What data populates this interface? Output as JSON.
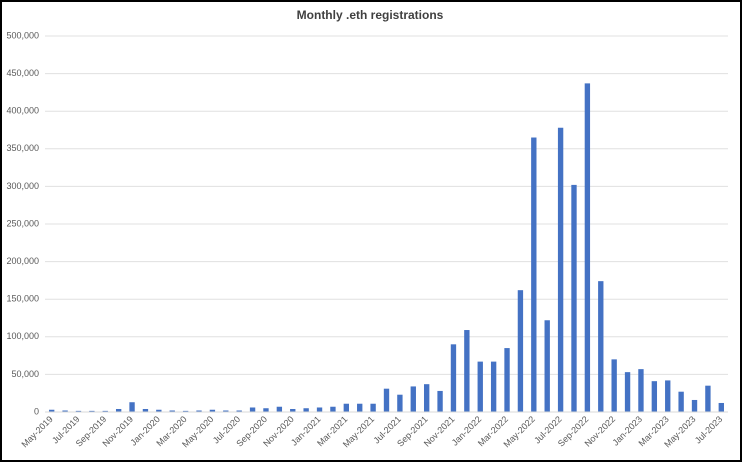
{
  "chart_data": {
    "type": "bar",
    "title": "Monthly .eth registrations",
    "categories": [
      "May-2019",
      null,
      "Jul-2019",
      null,
      "Sep-2019",
      null,
      "Nov-2019",
      null,
      "Jan-2020",
      null,
      "Mar-2020",
      null,
      "May-2020",
      null,
      "Jul-2020",
      null,
      "Sep-2020",
      null,
      "Nov-2020",
      null,
      "Jan-2021",
      null,
      "Mar-2021",
      null,
      "May-2021",
      null,
      "Jul-2021",
      null,
      "Sep-2021",
      null,
      "Nov-2021",
      null,
      "Jan-2022",
      null,
      "Mar-2022",
      null,
      "May-2022",
      null,
      "Jul-2022",
      null,
      "Sep-2022",
      null,
      "Nov-2022",
      null,
      "Jan-2023",
      null,
      "Mar-2023",
      null,
      "May-2023",
      null,
      "Jul-2023"
    ],
    "values": [
      3000,
      2000,
      1500,
      1500,
      1500,
      4000,
      13000,
      4000,
      3000,
      2000,
      1500,
      2000,
      3000,
      2000,
      2000,
      6000,
      5000,
      7000,
      4000,
      5000,
      6000,
      7000,
      11000,
      11000,
      11000,
      31000,
      23000,
      34000,
      37000,
      28000,
      90000,
      109000,
      67000,
      67000,
      85000,
      162000,
      365000,
      122000,
      378000,
      302000,
      437000,
      174000,
      70000,
      53000,
      57000,
      41000,
      42000,
      27000,
      16000,
      35000,
      12000
    ],
    "color": "#4472c4",
    "ylim": [
      0,
      500000
    ],
    "yticks": [
      0,
      {
        "value": 50000,
        "label": "50,000"
      },
      {
        "value": 100000,
        "label": "100,000"
      },
      {
        "value": 150000,
        "label": "150,000"
      },
      {
        "value": 200000,
        "label": "200,000"
      },
      {
        "value": 250000,
        "label": "250,000"
      },
      {
        "value": 300000,
        "label": "300,000"
      },
      {
        "value": 350000,
        "label": "350,000"
      },
      {
        "value": 400000,
        "label": "400,000"
      },
      {
        "value": 450000,
        "label": "450,000"
      },
      {
        "value": 500000,
        "label": "500,000"
      }
    ],
    "grid": true
  }
}
